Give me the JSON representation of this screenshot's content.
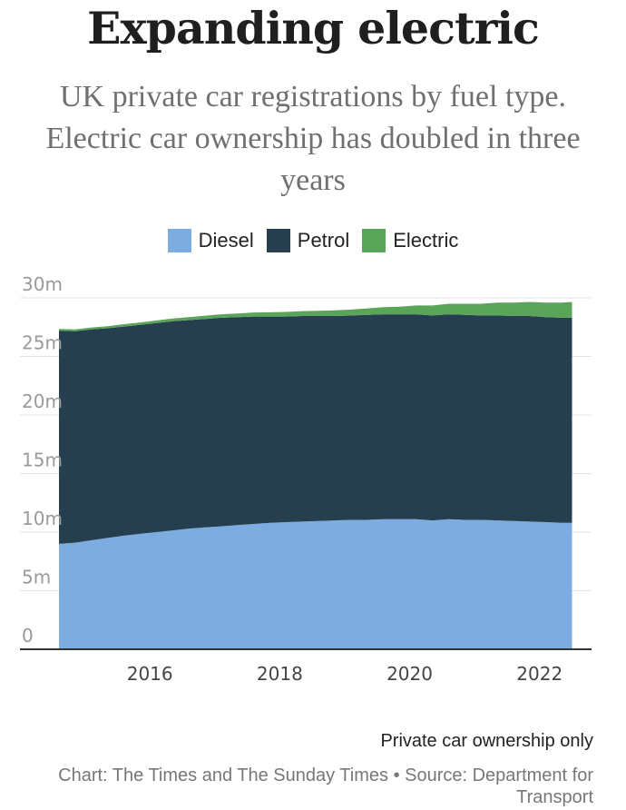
{
  "header": {
    "title": "Expanding electric",
    "subtitle": "UK private car registrations by fuel type. Electric car ownership has doubled in three years"
  },
  "legend": [
    {
      "label": "Diesel",
      "color": "#7dade0"
    },
    {
      "label": "Petrol",
      "color": "#263f4e"
    },
    {
      "label": "Electric",
      "color": "#5aa55a"
    }
  ],
  "chart_data": {
    "type": "area",
    "stacked": true,
    "title": "Expanding electric",
    "subtitle": "UK private car registrations by fuel type. Electric car ownership has doubled in three years",
    "x": [
      2014.6,
      2014.85,
      2015.1,
      2015.35,
      2015.6,
      2015.85,
      2016.1,
      2016.35,
      2016.6,
      2016.85,
      2017.1,
      2017.35,
      2017.6,
      2017.85,
      2018.1,
      2018.35,
      2018.6,
      2018.85,
      2019.1,
      2019.35,
      2019.6,
      2019.85,
      2020.1,
      2020.35,
      2020.6,
      2020.85,
      2021.1,
      2021.35,
      2021.6,
      2021.85,
      2022.1,
      2022.35,
      2022.5
    ],
    "series": [
      {
        "name": "Diesel",
        "color": "#7dade0",
        "values": [
          9.0,
          9.1,
          9.3,
          9.5,
          9.7,
          9.85,
          10.0,
          10.15,
          10.3,
          10.4,
          10.5,
          10.6,
          10.7,
          10.8,
          10.85,
          10.9,
          10.95,
          11.0,
          11.05,
          11.05,
          11.1,
          11.1,
          11.1,
          11.0,
          11.1,
          11.05,
          11.05,
          11.0,
          10.95,
          10.9,
          10.85,
          10.8,
          10.8
        ]
      },
      {
        "name": "Petrol",
        "color": "#263f4e",
        "values": [
          18.2,
          18.05,
          18.0,
          17.9,
          17.85,
          17.85,
          17.85,
          17.85,
          17.8,
          17.8,
          17.8,
          17.75,
          17.7,
          17.6,
          17.55,
          17.55,
          17.5,
          17.45,
          17.45,
          17.5,
          17.5,
          17.5,
          17.5,
          17.5,
          17.5,
          17.5,
          17.45,
          17.5,
          17.5,
          17.55,
          17.5,
          17.5,
          17.5
        ]
      },
      {
        "name": "Electric",
        "color": "#5aa55a",
        "values": [
          0.15,
          0.15,
          0.17,
          0.18,
          0.2,
          0.2,
          0.22,
          0.24,
          0.26,
          0.28,
          0.3,
          0.32,
          0.35,
          0.37,
          0.4,
          0.42,
          0.45,
          0.48,
          0.5,
          0.55,
          0.6,
          0.65,
          0.75,
          0.85,
          0.9,
          0.95,
          1.0,
          1.1,
          1.15,
          1.2,
          1.25,
          1.3,
          1.35
        ]
      }
    ],
    "xlim": [
      2014.0,
      2022.8
    ],
    "ylim": [
      0,
      30
    ],
    "y_ticks": [
      0,
      5,
      10,
      15,
      20,
      25,
      30
    ],
    "y_tick_labels": [
      "0",
      "5m",
      "10m",
      "15m",
      "20m",
      "25m",
      "30m"
    ],
    "x_ticks": [
      2016,
      2018,
      2020,
      2022
    ],
    "x_tick_labels": [
      "2016",
      "2018",
      "2020",
      "2022"
    ],
    "grid": true,
    "legend_position": "top-center"
  },
  "footer": {
    "note": "Private car ownership only",
    "source": "Chart: The Times and The Sunday Times • Source: Department for Transport"
  }
}
